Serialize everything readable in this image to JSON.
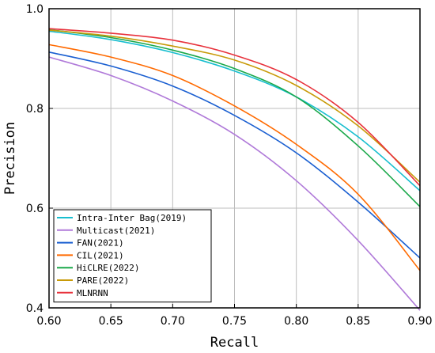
{
  "chart_data": {
    "type": "line",
    "xlabel": "Recall",
    "ylabel": "Precision",
    "xlim": [
      0.6,
      0.9
    ],
    "ylim": [
      0.4,
      1.0
    ],
    "x_ticks": [
      "0.60",
      "0.65",
      "0.70",
      "0.75",
      "0.80",
      "0.85",
      "0.90"
    ],
    "y_ticks": [
      "0.4",
      "0.6",
      "0.8",
      "1.0"
    ],
    "grid": true,
    "legend_position": "bottom-left",
    "x": [
      0.6,
      0.65,
      0.7,
      0.75,
      0.8,
      0.85,
      0.9
    ],
    "series": [
      {
        "name": "Intra-Inter Bag(2019)",
        "color": "#17becf",
        "values": [
          0.955,
          0.938,
          0.912,
          0.875,
          0.823,
          0.743,
          0.635
        ]
      },
      {
        "name": "Multicast(2021)",
        "color": "#b07ad9",
        "values": [
          0.903,
          0.866,
          0.815,
          0.748,
          0.655,
          0.535,
          0.395
        ]
      },
      {
        "name": "FAN(2021)",
        "color": "#1a5fd1",
        "values": [
          0.913,
          0.885,
          0.845,
          0.786,
          0.711,
          0.612,
          0.5
        ]
      },
      {
        "name": "CIL(2021)",
        "color": "#ff6a00",
        "values": [
          0.928,
          0.903,
          0.866,
          0.805,
          0.728,
          0.628,
          0.475
        ]
      },
      {
        "name": "HiCLRE(2022)",
        "color": "#1aa84a",
        "values": [
          0.958,
          0.942,
          0.917,
          0.88,
          0.823,
          0.725,
          0.603
        ]
      },
      {
        "name": "PARE(2022)",
        "color": "#c89a08",
        "values": [
          0.957,
          0.945,
          0.925,
          0.897,
          0.846,
          0.765,
          0.652
        ]
      },
      {
        "name": "MLNRNN",
        "color": "#e8323c",
        "values": [
          0.96,
          0.951,
          0.937,
          0.907,
          0.858,
          0.772,
          0.645
        ]
      }
    ]
  }
}
